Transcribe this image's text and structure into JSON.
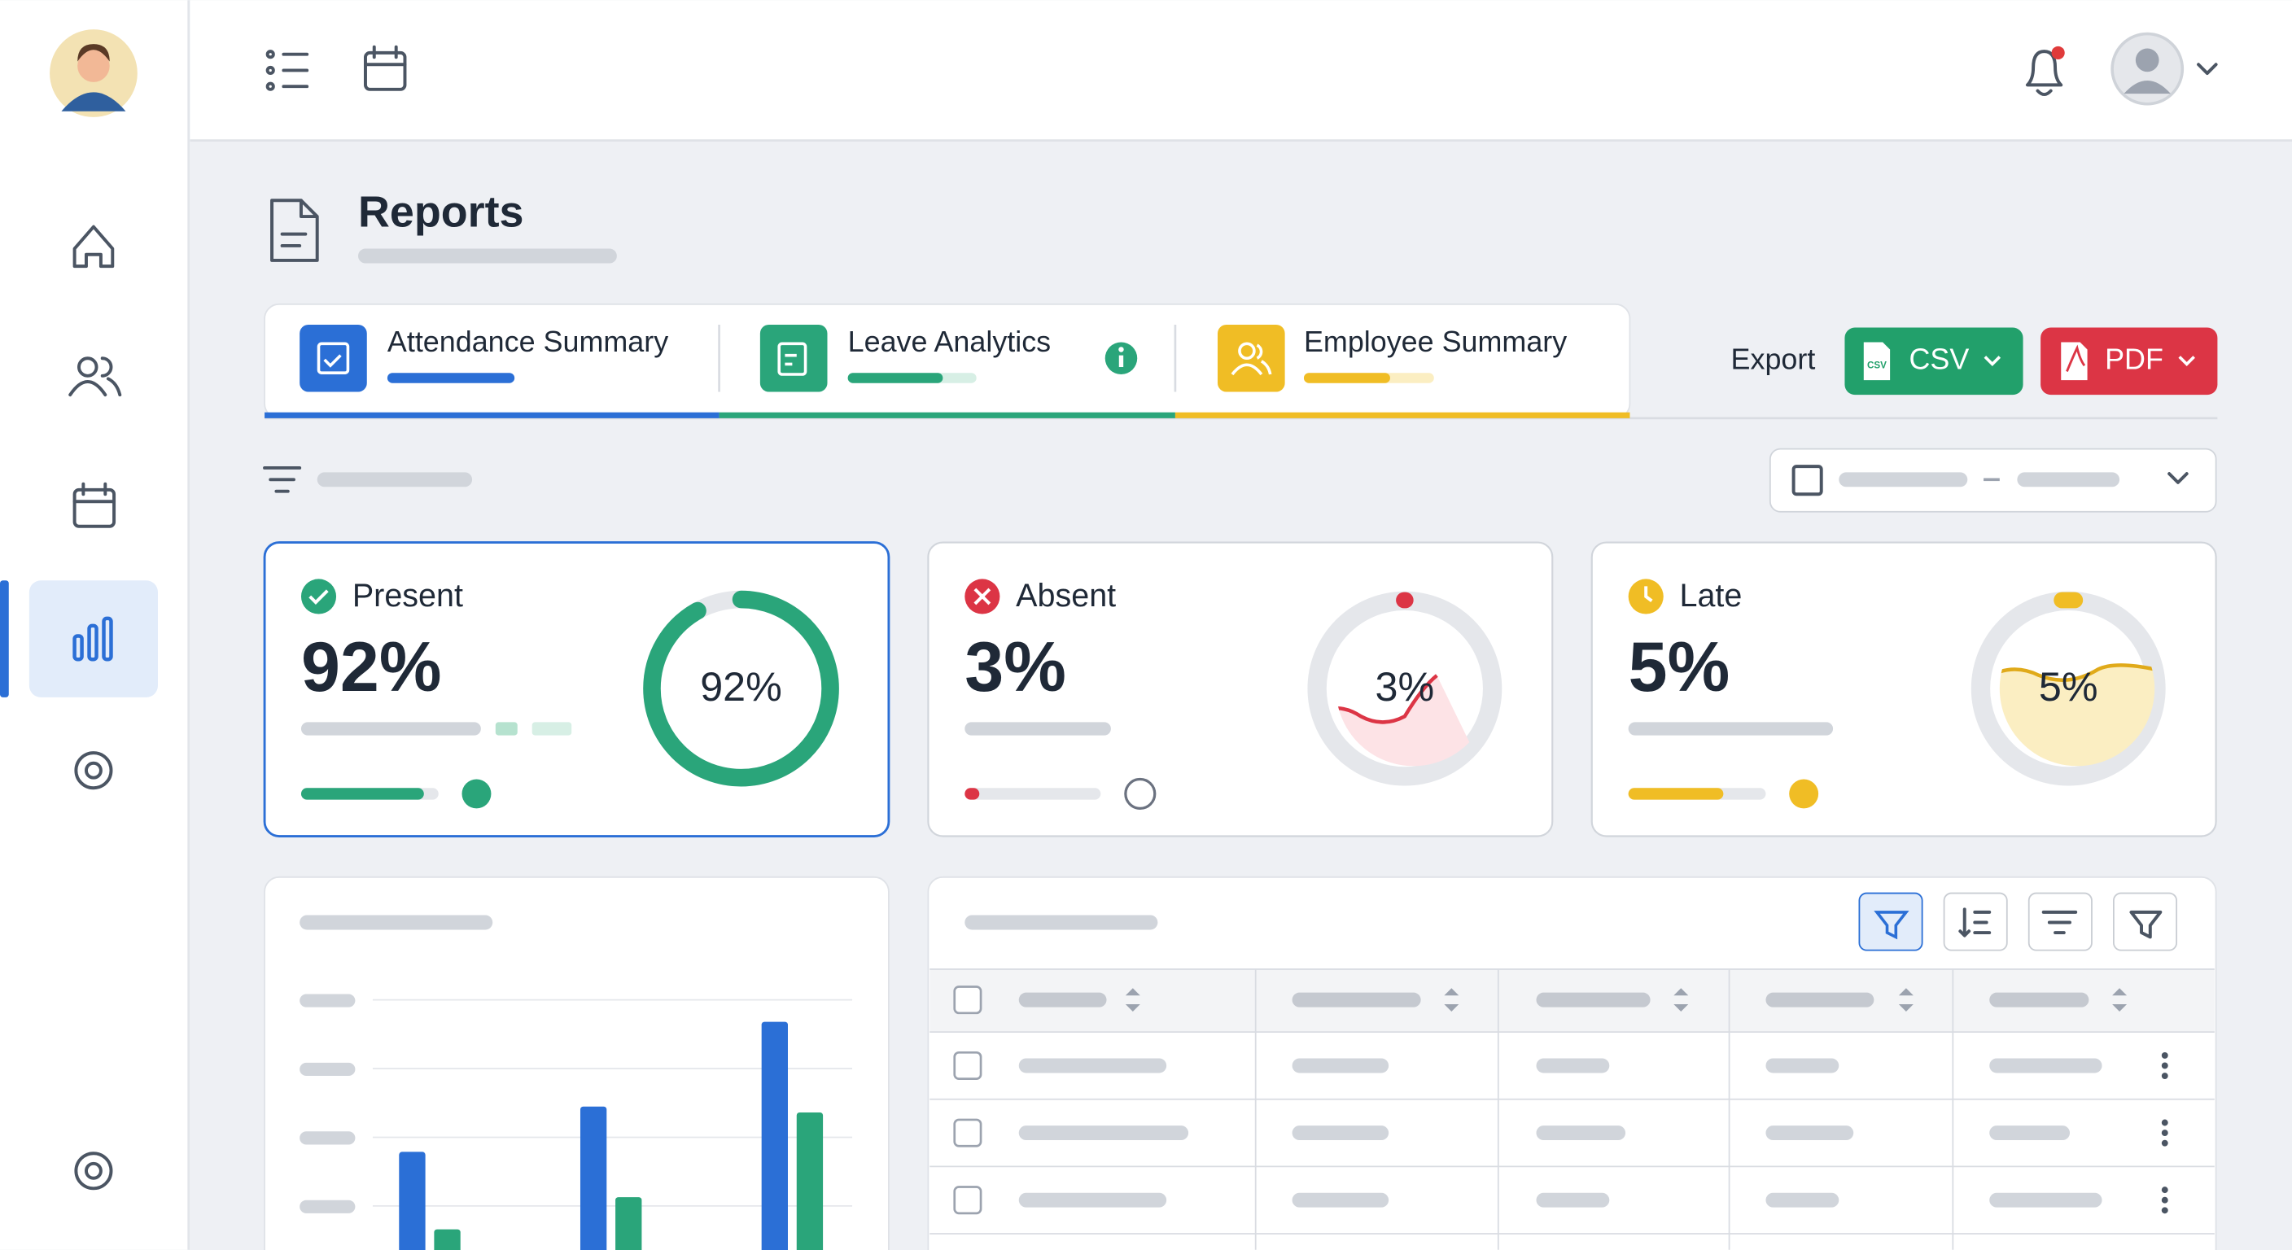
{
  "header": {
    "title": "Reports"
  },
  "tabs": [
    "Attendance Summary",
    "Leave Analytics",
    "Employee Summary"
  ],
  "export": {
    "label": "Export",
    "csv_icon": "CSV",
    "buttons": [
      "CSV",
      "PDF"
    ]
  },
  "kpis": [
    {
      "label": "Present",
      "value": "92%"
    },
    {
      "label": "Absent",
      "value": "3%"
    },
    {
      "label": "Late",
      "value": "5%"
    }
  ]
}
